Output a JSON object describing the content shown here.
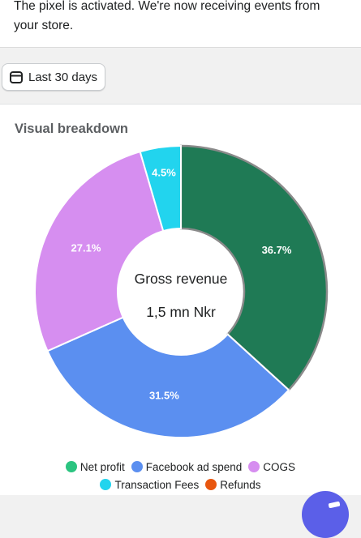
{
  "banner": {
    "text": "The pixel is activated. We're now receiving events from your store."
  },
  "date_filter": {
    "label": "Last 30 days",
    "icon": "calendar-icon"
  },
  "card": {
    "title": "Visual breakdown",
    "center_title": "Gross revenue",
    "center_value": "1,5 mn Nkr"
  },
  "chart_data": {
    "type": "pie",
    "title": "Visual breakdown",
    "categories": [
      "Net profit",
      "Facebook ad spend",
      "COGS",
      "Transaction Fees",
      "Refunds"
    ],
    "values": [
      36.7,
      31.5,
      27.1,
      4.5,
      0
    ],
    "labels": [
      "36.7%",
      "31.5%",
      "27.1%",
      "4.5%",
      ""
    ],
    "colors": [
      "#1f7a55",
      "#5b8ff0",
      "#d68ef0",
      "#22d4ee",
      "#e8560f"
    ],
    "legend_placement": "bottom",
    "donut": true
  },
  "legend": {
    "rows": [
      [
        {
          "label": "Net profit",
          "color": "#2bc480"
        },
        {
          "label": "Facebook ad spend",
          "color": "#5b8ff0"
        },
        {
          "label": "COGS",
          "color": "#d68ef0"
        }
      ],
      [
        {
          "label": "Transaction Fees",
          "color": "#22d4ee"
        },
        {
          "label": "Refunds",
          "color": "#e8560f"
        }
      ]
    ]
  },
  "fab": {
    "icon": "chat-icon"
  }
}
